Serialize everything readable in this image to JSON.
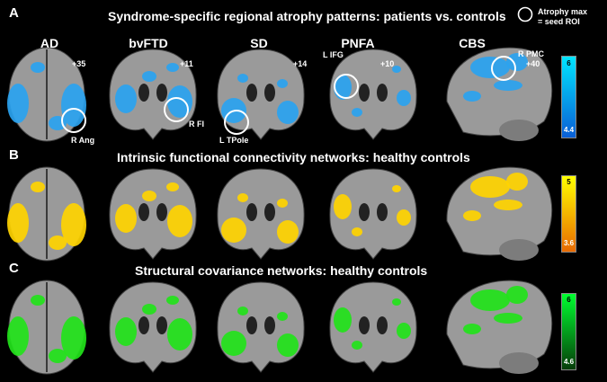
{
  "panels": {
    "a": {
      "letter": "A",
      "title": "Syndrome-specific regional atrophy patterns:  patients vs. controls"
    },
    "b": {
      "letter": "B",
      "title": "Intrinsic functional connectivity networks: healthy controls"
    },
    "c": {
      "letter": "C",
      "title": "Structural covariance networks:  healthy controls"
    }
  },
  "columns": [
    "AD",
    "bvFTD",
    "SD",
    "PNFA",
    "CBS"
  ],
  "slices": [
    "+35",
    "+11",
    "+14",
    "+10",
    "+40"
  ],
  "rois": {
    "ad": "R Ang",
    "bvftd": "R FI",
    "sd": "L TPole",
    "pnfa": "L IFG",
    "cbs": "R PMC"
  },
  "legend": {
    "line1": "Atrophy max",
    "line2": "= seed ROI"
  },
  "colorbars": {
    "a": {
      "max": "6",
      "min": "4.4",
      "top": "#00e5ff",
      "bottom": "#0a5fd6"
    },
    "b": {
      "max": "5",
      "min": "3.6",
      "top": "#ffff00",
      "bottom": "#e86a00"
    },
    "c": {
      "max": "6",
      "min": "4.6",
      "top": "#00ff30",
      "bottom": "#063d0a"
    }
  },
  "colors": {
    "atrophy": "#2aa3f0",
    "fc": "#ffd400",
    "sc": "#22e31a",
    "brain": "#9a9a9a"
  }
}
